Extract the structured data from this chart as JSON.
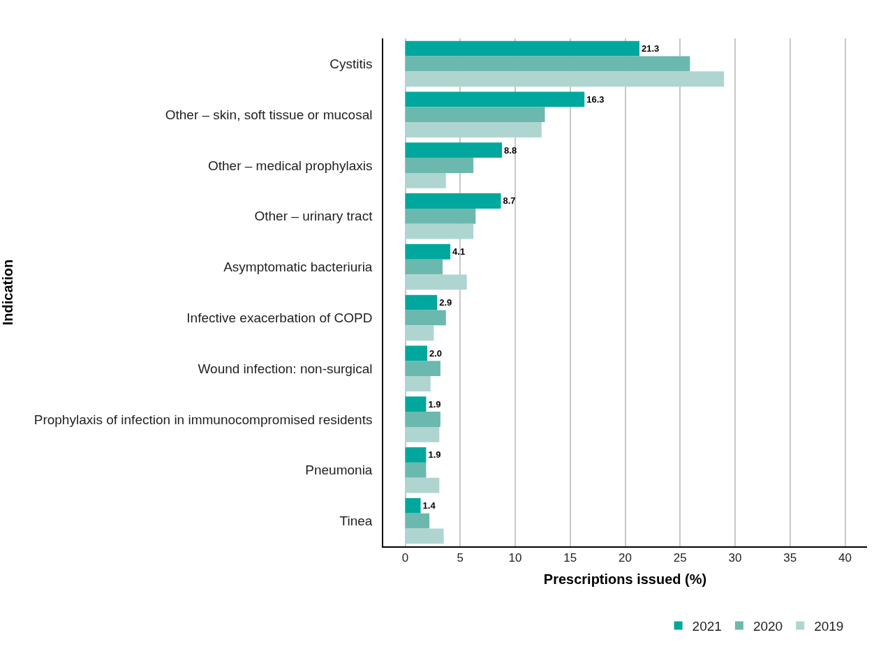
{
  "chart_data": {
    "type": "bar",
    "orientation": "horizontal",
    "xlabel": "Prescriptions issued (%)",
    "ylabel": "Indication",
    "categories": [
      "Cystitis",
      "Other – skin, soft tissue or mucosal",
      "Other – medical prophylaxis",
      "Other – urinary tract",
      "Asymptomatic bacteriuria",
      "Infective exacerbation of COPD",
      "Wound infection: non-surgical",
      "Prophylaxis of infection in immunocompromised residents",
      "Pneumonia",
      "Tinea"
    ],
    "series": [
      {
        "name": "2021",
        "color": "#00a79d",
        "values": [
          21.3,
          16.3,
          8.8,
          8.7,
          4.1,
          2.9,
          2.0,
          1.9,
          1.9,
          1.4
        ],
        "value_labels": [
          "21.3",
          "16.3",
          "8.8",
          "8.7",
          "4.1",
          "2.9",
          "2.0",
          "1.9",
          "1.9",
          "1.4"
        ]
      },
      {
        "name": "2020",
        "color": "#6bb8ae",
        "values": [
          25.9,
          12.7,
          6.2,
          6.4,
          3.4,
          3.7,
          3.2,
          3.2,
          1.9,
          2.2
        ]
      },
      {
        "name": "2019",
        "color": "#afd5d1",
        "values": [
          29.0,
          12.4,
          3.7,
          6.2,
          5.6,
          2.6,
          2.3,
          3.1,
          3.1,
          3.5
        ]
      }
    ],
    "xlim": [
      -2,
      42
    ],
    "xticks": [
      0,
      5,
      10,
      15,
      20,
      25,
      30,
      35,
      40
    ],
    "grid": "x",
    "legend": "bottom"
  }
}
